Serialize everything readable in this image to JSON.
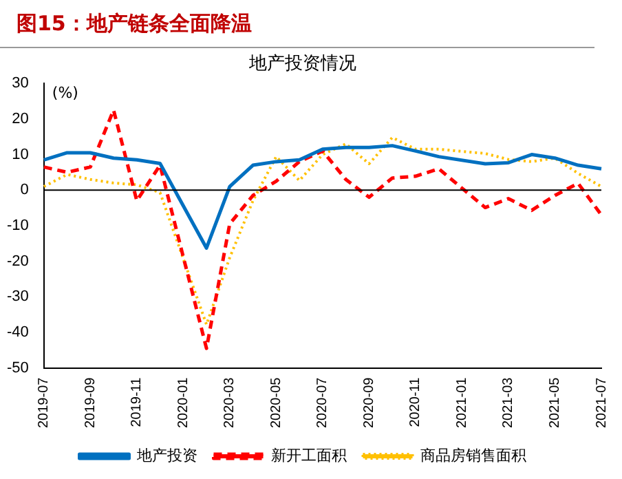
{
  "chart_data": {
    "type": "line",
    "title": "图15：地产链条全面降温",
    "subtitle": "地产投资情况",
    "ylabel": "(%)",
    "categories": [
      "2019-07",
      null,
      "2019-09",
      null,
      "2019-11",
      null,
      "2020-01",
      null,
      "2020-03",
      null,
      "2020-05",
      null,
      "2020-07",
      null,
      "2020-09",
      null,
      "2020-11",
      null,
      "2021-01",
      null,
      "2021-03",
      null,
      "2021-05",
      null,
      "2021-07"
    ],
    "series": [
      {
        "name": "地产投资",
        "color": "#0070c0",
        "line_style": "solid",
        "values": [
          8.5,
          10.5,
          10.5,
          9,
          8.5,
          7.5,
          null,
          -16.3,
          1,
          7,
          8,
          8.5,
          11.5,
          12,
          12,
          12.5,
          11,
          9.4,
          null,
          7.4,
          7.7,
          10,
          9,
          7,
          6
        ]
      },
      {
        "name": "新开工面积",
        "color": "#ff0000",
        "line_style": "dashed",
        "values": [
          6.5,
          5,
          6.5,
          22.5,
          -3,
          7,
          null,
          -44.5,
          -9.5,
          -1.5,
          2.5,
          8,
          11,
          3,
          -2,
          3.4,
          3.9,
          6,
          null,
          -4.9,
          -2.4,
          -5.7,
          -1.5,
          1.9,
          -7
        ]
      },
      {
        "name": "商品房销售面积",
        "color": "#ffc000",
        "line_style": "dotted",
        "values": [
          1,
          4.4,
          3,
          2,
          1.5,
          -0.7,
          null,
          -37.8,
          -19,
          -3,
          9.4,
          2.7,
          10,
          13,
          7.4,
          14.8,
          11.5,
          11.5,
          null,
          10.3,
          8.6,
          8,
          9,
          4.7,
          1
        ]
      }
    ],
    "ylim": [
      -50,
      30
    ],
    "yticks": [
      -50,
      -40,
      -30,
      -20,
      -10,
      0,
      10,
      20,
      30
    ],
    "ref_lines": [
      {
        "axis": "y",
        "value": 0,
        "color": "#000000"
      }
    ],
    "grid": false,
    "legend": "bottom",
    "marker": "none"
  }
}
